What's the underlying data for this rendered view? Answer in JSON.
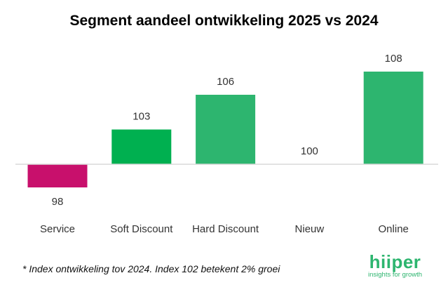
{
  "chart_data": {
    "type": "bar",
    "title": "Segment aandeel ontwikkeling 2025 vs 2024",
    "categories": [
      "Service",
      "Soft Discount",
      "Hard Discount",
      "Nieuw",
      "Online"
    ],
    "values": [
      98,
      103,
      106,
      100,
      108
    ],
    "baseline": 100,
    "colors": [
      "#C8106C",
      "#00B050",
      "#2DB56F",
      "#2DB56F",
      "#2DB56F"
    ],
    "data_labels": [
      "98",
      "103",
      "106",
      "100",
      "108"
    ],
    "xlabel": "",
    "ylabel": "",
    "grid": false,
    "legend": "none"
  },
  "footnote": "* Index ontwikkeling tov 2024. Index 102 betekent 2% groei",
  "logo": {
    "wordmark": "hiiper",
    "tagline": "insights for growth",
    "color": "#2DB56F"
  }
}
